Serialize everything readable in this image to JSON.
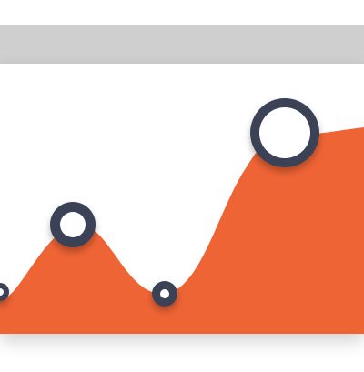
{
  "colors": {
    "top_bar": "#cfcfcf",
    "card_background": "#ffffff",
    "area_fill": "#ef6435",
    "marker_ring": "#3a4257",
    "marker_center": "#ffffff"
  },
  "icons": {
    "marker": "circle-marker-icon"
  }
}
